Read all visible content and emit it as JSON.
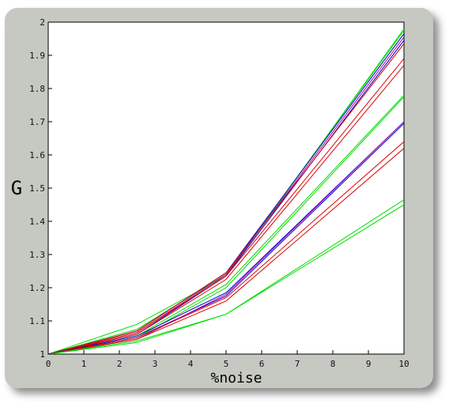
{
  "chart_data": {
    "type": "line",
    "title": "",
    "xlabel": "%noise",
    "ylabel": "G",
    "xlim": [
      0,
      10
    ],
    "ylim": [
      1,
      2
    ],
    "grid": false,
    "legend": "none",
    "x_ticks": [
      "0",
      "1",
      "2",
      "3",
      "4",
      "5",
      "6",
      "7",
      "8",
      "9",
      "10"
    ],
    "y_ticks": [
      "1",
      "1.1",
      "1.2",
      "1.3",
      "1.4",
      "1.5",
      "1.6",
      "1.7",
      "1.8",
      "1.9",
      "2"
    ],
    "x": [
      0,
      2.5,
      5,
      10
    ],
    "colors": {
      "green": "#00dd00",
      "blue": "#0000cc",
      "red": "#dd0000",
      "purple": "#aa00aa"
    },
    "series": [
      {
        "color": "green",
        "values": [
          1,
          1.09,
          1.235,
          1.98
        ]
      },
      {
        "color": "green",
        "values": [
          1,
          1.075,
          1.24,
          1.975
        ]
      },
      {
        "color": "blue",
        "values": [
          1,
          1.07,
          1.245,
          1.965
        ]
      },
      {
        "color": "purple",
        "values": [
          1,
          1.065,
          1.24,
          1.955
        ]
      },
      {
        "color": "blue",
        "values": [
          1,
          1.06,
          1.235,
          1.945
        ]
      },
      {
        "color": "red",
        "values": [
          1,
          1.07,
          1.245,
          1.935
        ]
      },
      {
        "color": "red",
        "values": [
          1,
          1.065,
          1.235,
          1.89
        ]
      },
      {
        "color": "red",
        "values": [
          1,
          1.06,
          1.225,
          1.87
        ]
      },
      {
        "color": "green",
        "values": [
          1,
          1.055,
          1.21,
          1.78
        ]
      },
      {
        "color": "green",
        "values": [
          1,
          1.05,
          1.2,
          1.775
        ]
      },
      {
        "color": "blue",
        "values": [
          1,
          1.055,
          1.185,
          1.7
        ]
      },
      {
        "color": "blue",
        "values": [
          1,
          1.05,
          1.175,
          1.695
        ]
      },
      {
        "color": "purple",
        "values": [
          1,
          1.045,
          1.18,
          1.7
        ]
      },
      {
        "color": "red",
        "values": [
          1,
          1.05,
          1.17,
          1.64
        ]
      },
      {
        "color": "red",
        "values": [
          1,
          1.045,
          1.16,
          1.62
        ]
      },
      {
        "color": "green",
        "values": [
          1,
          1.04,
          1.12,
          1.465
        ]
      },
      {
        "color": "green",
        "values": [
          1,
          1.035,
          1.12,
          1.45
        ]
      }
    ]
  }
}
